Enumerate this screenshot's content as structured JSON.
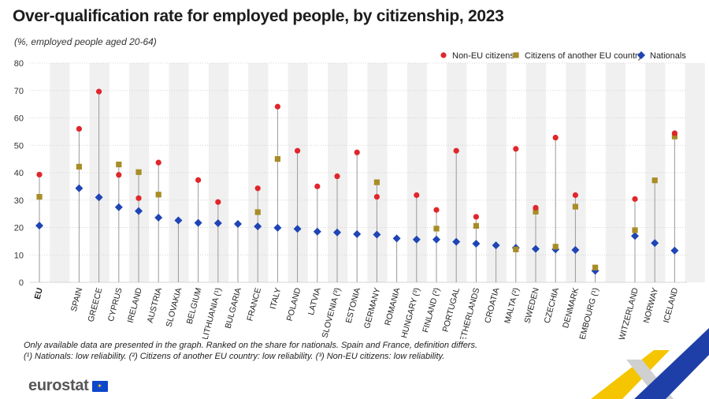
{
  "title": "Over-qualification rate for employed people, by citizenship, 2023",
  "subtitle": "(%, employed people aged 20-64)",
  "notes": [
    "Only available data are presented in the graph. Ranked on the share for nationals. Spain and France, definition differs.",
    "(¹) Nationals: low reliability. (²) Citizens of another EU country: low reliability.  (³) Non-EU citizens: low reliability."
  ],
  "logo_text": "eurostat",
  "colors": {
    "non_eu": "#e0262b",
    "other_eu": "#a88d26",
    "nationals": "#1f45b5",
    "stripe": "#f0f0f0",
    "grid": "#d4d4d4"
  },
  "chart_data": {
    "type": "scatter",
    "ylim": [
      0,
      80
    ],
    "yticks": [
      0,
      10,
      20,
      30,
      40,
      50,
      60,
      70,
      80
    ],
    "legend_position": "top-right",
    "categories": [
      "EU",
      "",
      "Spain",
      "Greece",
      "Cyprus",
      "Ireland",
      "Austria",
      "Slovakia",
      "Belgium",
      "Lithuania (¹)",
      "Bulgaria",
      "France",
      "Italy",
      "Poland",
      "Latvia",
      "Slovenia (³)",
      "Estonia",
      "Germany",
      "Romania",
      "Hungary (³)",
      "Finland (²)",
      "Portugal",
      "Netherlands",
      "Croatia",
      "Malta (²)",
      "Sweden",
      "Czechia",
      "Denmark",
      "Luxembourg (¹)",
      "",
      "Switzerland",
      "Norway",
      "Iceland"
    ],
    "bold_categories": [
      "EU"
    ],
    "series": [
      {
        "name": "Non-EU citizens",
        "marker": "circle",
        "color": "#e0262b",
        "values": [
          39.3,
          null,
          56,
          69.6,
          39.2,
          30.7,
          43.7,
          null,
          37.3,
          29.3,
          null,
          34.3,
          64.1,
          48,
          35,
          38.7,
          47.4,
          31.2,
          null,
          31.8,
          26.4,
          48,
          23.9,
          null,
          48.7,
          27.2,
          52.8,
          31.8,
          null,
          null,
          30.4,
          null,
          54.4
        ]
      },
      {
        "name": "Citizens of another EU country",
        "marker": "square",
        "color": "#a88d26",
        "values": [
          31.2,
          null,
          42.2,
          null,
          43,
          40.2,
          32,
          null,
          null,
          null,
          null,
          25.6,
          45,
          null,
          null,
          null,
          null,
          36.5,
          null,
          null,
          19.6,
          null,
          20.6,
          null,
          12,
          25.8,
          13,
          27.6,
          5.4,
          null,
          19,
          37.2,
          53.2
        ]
      },
      {
        "name": "Nationals",
        "marker": "diamond",
        "color": "#1f45b5",
        "values": [
          20.7,
          null,
          34.3,
          31,
          27.4,
          26,
          23.6,
          22.6,
          21.7,
          21.6,
          21.3,
          20.4,
          19.9,
          19.5,
          18.5,
          18.2,
          17.6,
          17.4,
          16,
          15.6,
          15.6,
          14.8,
          14.1,
          13.5,
          12.6,
          12.2,
          12,
          11.8,
          4.2,
          null,
          16.9,
          14.3,
          11.6
        ]
      }
    ]
  }
}
